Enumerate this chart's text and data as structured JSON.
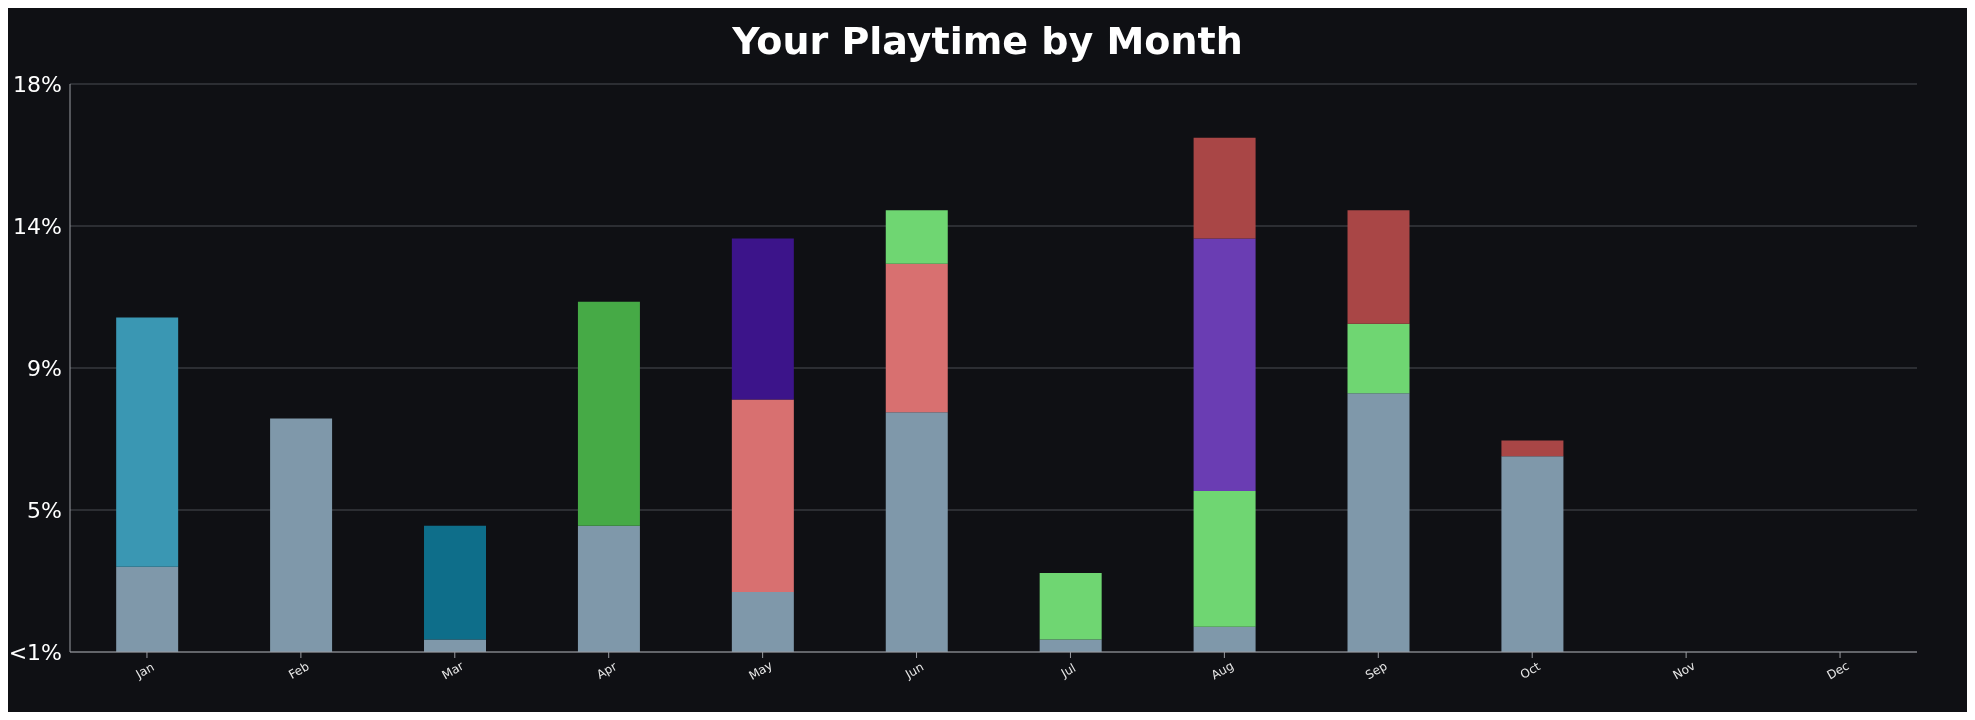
{
  "chart_data": {
    "type": "bar",
    "title": "Your Playtime by Month",
    "stacked": true,
    "grid": "y",
    "categories": [
      "Jan",
      "Feb",
      "Mar",
      "Apr",
      "May",
      "Jun",
      "Jul",
      "Aug",
      "Sep",
      "Oct",
      "Nov",
      "Dec"
    ],
    "ylim": [
      0,
      18
    ],
    "yticks": [
      {
        "value": 0,
        "label": "<1%"
      },
      {
        "value": 4.5,
        "label": "5%"
      },
      {
        "value": 9,
        "label": "9%"
      },
      {
        "value": 13.5,
        "label": "14%"
      },
      {
        "value": 18,
        "label": "18%"
      }
    ],
    "series": [
      {
        "colors": [
          "#7f98aa",
          "#7f98aa",
          "#7f98aa",
          "#7f98aa",
          "#7f98aa",
          "#7f98aa",
          "#7f98aa",
          "#7f98aa",
          "#7f98aa",
          "#7f98aa",
          "#7f98aa",
          "#7f98aa"
        ],
        "values": [
          2.7,
          7.4,
          0.4,
          4.0,
          1.9,
          7.6,
          0.4,
          0.8,
          8.2,
          6.2,
          null,
          null
        ]
      },
      {
        "colors": [
          "#3a97b3",
          "#3a97b3",
          "#0e6e8a",
          "#46aa46",
          "#d87070",
          "#d87070",
          "#6fd672",
          "#6fd672",
          "#6fd672",
          "#a94646",
          "#a94646",
          "#a94646"
        ],
        "values": [
          7.9,
          null,
          3.6,
          7.1,
          6.1,
          4.7,
          2.1,
          4.3,
          2.2,
          0.5,
          null,
          null
        ]
      },
      {
        "colors": [
          "#3c148a",
          "#3c148a",
          "#3c148a",
          "#3c148a",
          "#3c148a",
          "#6fd672",
          "#6fd672",
          "#6a3db3",
          "#a94646",
          "#a94646",
          "#a94646",
          "#a94646"
        ],
        "values": [
          null,
          null,
          null,
          null,
          5.1,
          1.7,
          null,
          8.0,
          3.6,
          null,
          null,
          null
        ]
      },
      {
        "colors": [
          "#a94646",
          "#a94646",
          "#a94646",
          "#a94646",
          "#a94646",
          "#a94646",
          "#a94646",
          "#a94646",
          "#a94646",
          "#a94646",
          "#a94646",
          "#a94646"
        ],
        "values": [
          null,
          null,
          null,
          null,
          null,
          null,
          null,
          3.2,
          null,
          null,
          null,
          null
        ]
      }
    ]
  }
}
